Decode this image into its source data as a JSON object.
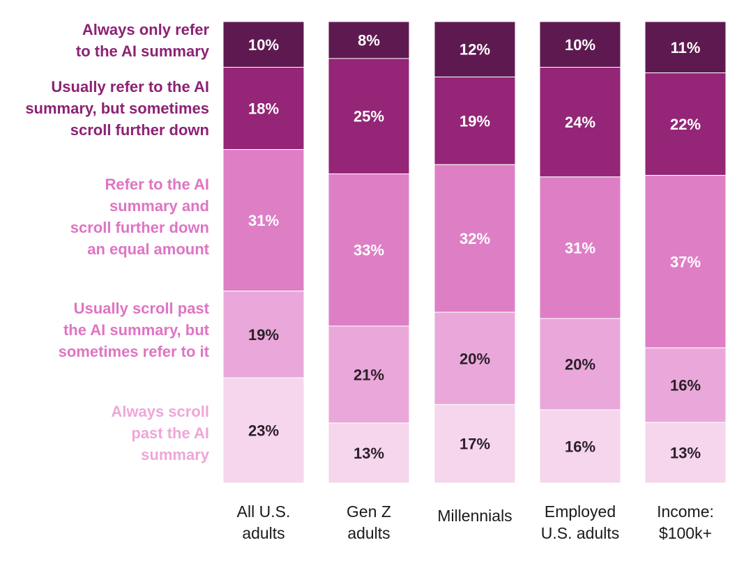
{
  "chart_data": {
    "type": "bar",
    "stacked": true,
    "orientation": "vertical",
    "value_format": "percent",
    "categories": [
      [
        "All U.S.",
        "adults"
      ],
      [
        "Gen Z",
        "adults"
      ],
      [
        "Millennials"
      ],
      [
        "Employed",
        "U.S. adults"
      ],
      [
        "Income:",
        "$100k+"
      ]
    ],
    "series": [
      {
        "name": [
          "Always only refer",
          "to the AI summary"
        ],
        "color": "#5e1a50",
        "label_color": "#ffffff",
        "values": [
          10,
          8,
          12,
          10,
          11
        ]
      },
      {
        "name": [
          "Usually refer to the AI",
          "summary, but sometimes",
          "scroll further down"
        ],
        "color": "#942577",
        "label_color": "#ffffff",
        "values": [
          18,
          25,
          19,
          24,
          22
        ]
      },
      {
        "name": [
          "Refer to the AI",
          "summary and",
          "scroll further down",
          "an equal amount"
        ],
        "color": "#de7fc6",
        "label_color": "#ffffff",
        "values": [
          31,
          33,
          32,
          31,
          37
        ]
      },
      {
        "name": [
          "Usually scroll past",
          "the AI summary, but",
          "sometimes refer to it"
        ],
        "color": "#eaa8da",
        "label_color": "#2a1f28",
        "values": [
          19,
          21,
          20,
          20,
          16
        ]
      },
      {
        "name": [
          "Always scroll",
          "past the AI",
          "summary"
        ],
        "color": "#f5d6ec",
        "label_color": "#2a1f28",
        "values": [
          23,
          13,
          17,
          16,
          13
        ]
      }
    ],
    "legend_placement": "left",
    "legend_text_colors": [
      "#8c2274",
      "#8c2274",
      "#df74c3",
      "#df74c3",
      "#efa6d8"
    ],
    "grid": false
  }
}
